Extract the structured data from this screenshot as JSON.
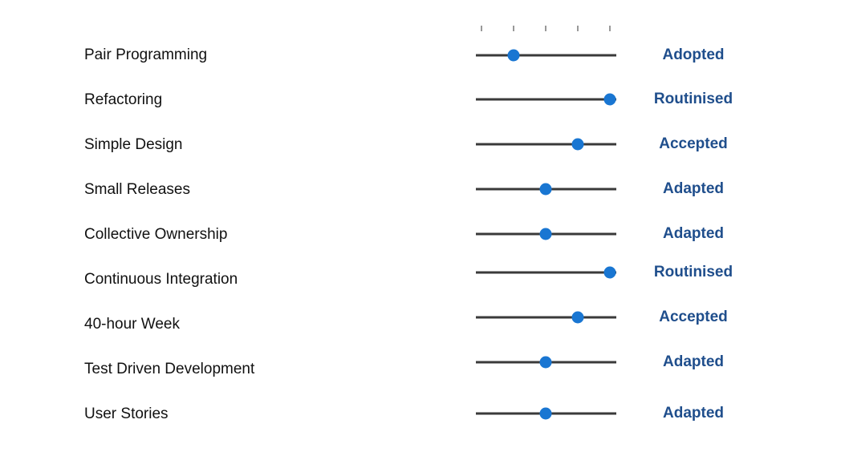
{
  "colors": {
    "accent": "#1976d2",
    "stage_text": "#1f4e8c",
    "track": "#3a3a3a"
  },
  "chart_data": {
    "type": "scatter",
    "title": "",
    "xlabel": "",
    "ylabel": "",
    "scale_ticks": 5,
    "xlim": [
      1,
      5
    ],
    "categories": [
      "Pair Programming",
      "Refactoring",
      "Simple Design",
      "Small Releases",
      "Collective Ownership",
      "Continuous Integration",
      "40-hour Week",
      "Test Driven Development",
      "User Stories"
    ],
    "values": [
      2,
      5,
      4,
      3,
      3,
      5,
      4,
      3,
      3
    ],
    "stages": [
      "Adopted",
      "Routinised",
      "Accepted",
      "Adapted",
      "Adapted",
      "Routinised",
      "Accepted",
      "Adapted",
      "Adapted"
    ]
  }
}
